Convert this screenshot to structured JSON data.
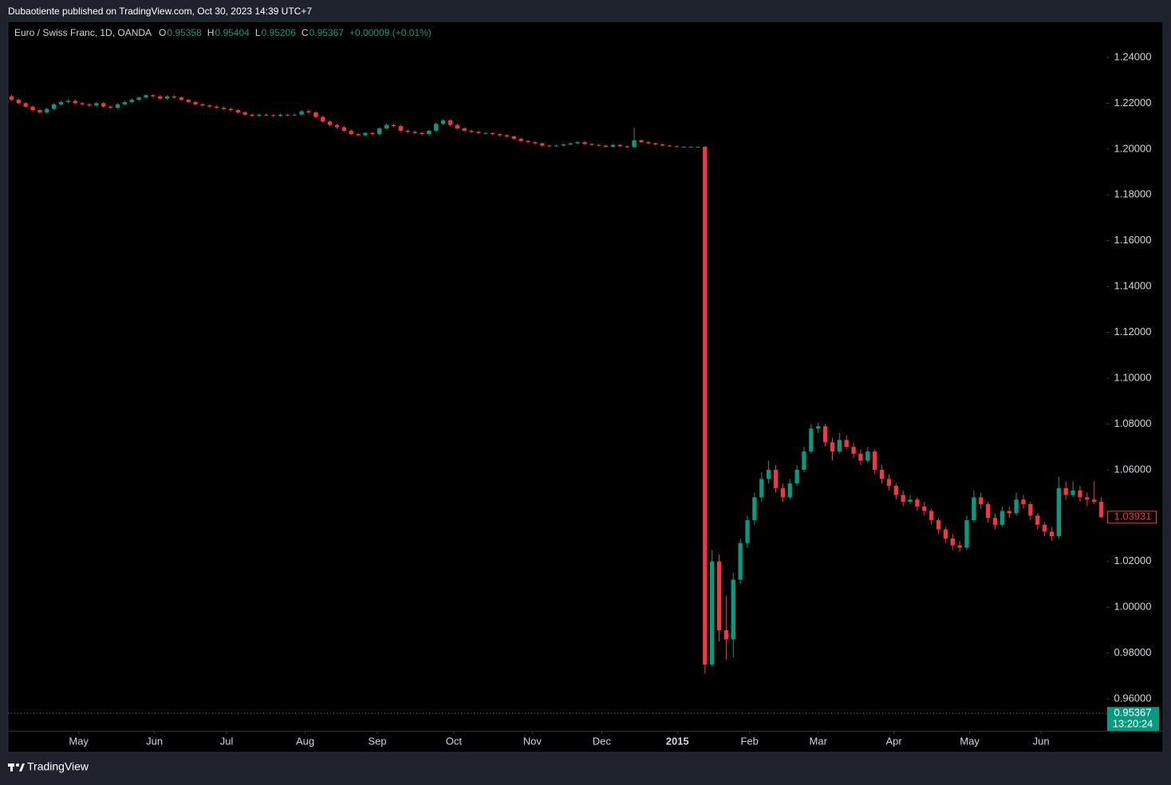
{
  "header": {
    "published": "Dubaotiente published on TradingView.com, Oct 30, 2023 14:39 UTC+7"
  },
  "footer": {
    "brand": "TradingView"
  },
  "chart_data": {
    "type": "candlestick",
    "title": "Euro / Swiss Franc, 1D, OANDA",
    "legend_values": [
      {
        "label": "O",
        "value": 0.95358
      },
      {
        "label": "H",
        "value": 0.95404
      },
      {
        "label": "L",
        "value": 0.95206
      },
      {
        "label": "C",
        "value": 0.95367
      }
    ],
    "change": "+0.00009 (+0.01%)",
    "up_color": "#089981",
    "down_color": "#f23645",
    "ylim": [
      0.9461,
      1.2553
    ],
    "yticks": [
      {
        "value": 0.96,
        "label": "0.96000"
      },
      {
        "value": 0.98,
        "label": "0.98000"
      },
      {
        "value": 1.0,
        "label": "1.00000"
      },
      {
        "value": 1.02,
        "label": "1.02000"
      },
      {
        "value": 1.04,
        "label": "1.04000"
      },
      {
        "value": 1.06,
        "label": "1.06000"
      },
      {
        "value": 1.08,
        "label": "1.08000"
      },
      {
        "value": 1.1,
        "label": "1.10000"
      },
      {
        "value": 1.12,
        "label": "1.12000"
      },
      {
        "value": 1.14,
        "label": "1.14000"
      },
      {
        "value": 1.16,
        "label": "1.16000"
      },
      {
        "value": 1.18,
        "label": "1.18000"
      },
      {
        "value": 1.2,
        "label": "1.20000"
      },
      {
        "value": 1.22,
        "label": "1.22000"
      },
      {
        "value": 1.24,
        "label": "1.24000"
      }
    ],
    "xlim": [
      -0.5,
      154.5
    ],
    "xticks": [
      {
        "value": 9.5,
        "label": "May"
      },
      {
        "value": 20.2,
        "label": "Jun"
      },
      {
        "value": 30.4,
        "label": "Jul"
      },
      {
        "value": 41.5,
        "label": "Aug"
      },
      {
        "value": 51.7,
        "label": "Sep"
      },
      {
        "value": 62.5,
        "label": "Oct"
      },
      {
        "value": 73.6,
        "label": "Nov"
      },
      {
        "value": 83.4,
        "label": "Dec"
      },
      {
        "value": 94.1,
        "label": "2015"
      },
      {
        "value": 104.3,
        "label": "Feb"
      },
      {
        "value": 114,
        "label": "Mar"
      },
      {
        "value": 124.7,
        "label": "Apr"
      },
      {
        "value": 135.4,
        "label": "May"
      },
      {
        "value": 145.5,
        "label": "Jun"
      }
    ],
    "price_lines": [
      {
        "value": 1.03931,
        "color": "#f23645"
      },
      {
        "value": 0.95367,
        "color": "#089981",
        "countdown": "13:20:24"
      }
    ],
    "ohlc": [
      [
        1.223,
        1.2238,
        1.221,
        1.2215
      ],
      [
        1.2215,
        1.222,
        1.2195,
        1.22
      ],
      [
        1.22,
        1.2205,
        1.218,
        1.2185
      ],
      [
        1.2185,
        1.219,
        1.2165,
        1.217
      ],
      [
        1.217,
        1.2175,
        1.2155,
        1.216
      ],
      [
        1.216,
        1.218,
        1.2155,
        1.2175
      ],
      [
        1.2175,
        1.22,
        1.217,
        1.2195
      ],
      [
        1.2195,
        1.221,
        1.219,
        1.2205
      ],
      [
        1.2205,
        1.2218,
        1.22,
        1.221
      ],
      [
        1.221,
        1.2215,
        1.2195,
        1.22
      ],
      [
        1.22,
        1.2205,
        1.219,
        1.2195
      ],
      [
        1.2195,
        1.22,
        1.2185,
        1.219
      ],
      [
        1.219,
        1.2205,
        1.2185,
        1.22
      ],
      [
        1.22,
        1.2205,
        1.218,
        1.2185
      ],
      [
        1.2185,
        1.219,
        1.2175,
        1.218
      ],
      [
        1.218,
        1.22,
        1.2175,
        1.2195
      ],
      [
        1.2195,
        1.221,
        1.219,
        1.2205
      ],
      [
        1.2205,
        1.222,
        1.22,
        1.2215
      ],
      [
        1.2215,
        1.223,
        1.221,
        1.2225
      ],
      [
        1.2225,
        1.224,
        1.222,
        1.2235
      ],
      [
        1.2235,
        1.224,
        1.2225,
        1.223
      ],
      [
        1.223,
        1.2235,
        1.2215,
        1.222
      ],
      [
        1.222,
        1.2235,
        1.2215,
        1.223
      ],
      [
        1.223,
        1.2235,
        1.222,
        1.2225
      ],
      [
        1.2225,
        1.223,
        1.221,
        1.2215
      ],
      [
        1.2215,
        1.222,
        1.22,
        1.2205
      ],
      [
        1.2205,
        1.221,
        1.219,
        1.2195
      ],
      [
        1.2195,
        1.22,
        1.2185,
        1.219
      ],
      [
        1.219,
        1.2195,
        1.218,
        1.2185
      ],
      [
        1.2185,
        1.219,
        1.2175,
        1.218
      ],
      [
        1.218,
        1.2185,
        1.217,
        1.2175
      ],
      [
        1.2175,
        1.218,
        1.2165,
        1.217
      ],
      [
        1.217,
        1.2175,
        1.2155,
        1.216
      ],
      [
        1.216,
        1.2165,
        1.2145,
        1.215
      ],
      [
        1.215,
        1.2155,
        1.214,
        1.2145
      ],
      [
        1.2145,
        1.2155,
        1.214,
        1.215
      ],
      [
        1.215,
        1.2155,
        1.2143,
        1.2148
      ],
      [
        1.2148,
        1.2152,
        1.214,
        1.2145
      ],
      [
        1.2145,
        1.2155,
        1.214,
        1.215
      ],
      [
        1.215,
        1.2154,
        1.2143,
        1.2148
      ],
      [
        1.2148,
        1.2155,
        1.2144,
        1.215
      ],
      [
        1.215,
        1.217,
        1.2146,
        1.2165
      ],
      [
        1.2165,
        1.2172,
        1.2155,
        1.216
      ],
      [
        1.216,
        1.2164,
        1.2135,
        1.214
      ],
      [
        1.214,
        1.2145,
        1.2115,
        1.212
      ],
      [
        1.212,
        1.2125,
        1.21,
        1.2105
      ],
      [
        1.2105,
        1.211,
        1.209,
        1.2095
      ],
      [
        1.2095,
        1.21,
        1.2075,
        1.208
      ],
      [
        1.208,
        1.2085,
        1.206,
        1.2065
      ],
      [
        1.2065,
        1.207,
        1.2055,
        1.206
      ],
      [
        1.206,
        1.2075,
        1.2055,
        1.207
      ],
      [
        1.207,
        1.2075,
        1.206,
        1.2065
      ],
      [
        1.2065,
        1.2095,
        1.206,
        1.209
      ],
      [
        1.209,
        1.2112,
        1.2085,
        1.2105
      ],
      [
        1.2105,
        1.211,
        1.2095,
        1.21
      ],
      [
        1.21,
        1.2105,
        1.2075,
        1.208
      ],
      [
        1.208,
        1.2085,
        1.207,
        1.2075
      ],
      [
        1.2075,
        1.208,
        1.2065,
        1.207
      ],
      [
        1.207,
        1.2075,
        1.206,
        1.2065
      ],
      [
        1.2065,
        1.2085,
        1.206,
        1.208
      ],
      [
        1.208,
        1.2115,
        1.2075,
        1.211
      ],
      [
        1.211,
        1.213,
        1.2105,
        1.2125
      ],
      [
        1.2125,
        1.213,
        1.21,
        1.2105
      ],
      [
        1.2105,
        1.211,
        1.2085,
        1.209
      ],
      [
        1.209,
        1.2095,
        1.2075,
        1.208
      ],
      [
        1.208,
        1.2085,
        1.207,
        1.2075
      ],
      [
        1.2075,
        1.208,
        1.2065,
        1.207
      ],
      [
        1.207,
        1.2075,
        1.2065,
        1.207
      ],
      [
        1.207,
        1.2073,
        1.206,
        1.2065
      ],
      [
        1.2065,
        1.2068,
        1.2055,
        1.206
      ],
      [
        1.206,
        1.2064,
        1.205,
        1.2055
      ],
      [
        1.2055,
        1.2058,
        1.204,
        1.2045
      ],
      [
        1.2045,
        1.205,
        1.203,
        1.2035
      ],
      [
        1.2035,
        1.204,
        1.2025,
        1.203
      ],
      [
        1.203,
        1.2034,
        1.202,
        1.2025
      ],
      [
        1.2025,
        1.2028,
        1.201,
        1.2015
      ],
      [
        1.2015,
        1.2018,
        1.2008,
        1.2012
      ],
      [
        1.2012,
        1.202,
        1.2009,
        1.2015
      ],
      [
        1.2015,
        1.2024,
        1.2012,
        1.202
      ],
      [
        1.202,
        1.2028,
        1.2016,
        1.2025
      ],
      [
        1.2025,
        1.2034,
        1.202,
        1.203
      ],
      [
        1.203,
        1.2034,
        1.2018,
        1.2022
      ],
      [
        1.2022,
        1.2026,
        1.2014,
        1.2018
      ],
      [
        1.2018,
        1.2022,
        1.2011,
        1.2015
      ],
      [
        1.2015,
        1.2018,
        1.2006,
        1.201
      ],
      [
        1.201,
        1.2022,
        1.2007,
        1.2018
      ],
      [
        1.2018,
        1.2021,
        1.2009,
        1.2012
      ],
      [
        1.2012,
        1.2015,
        1.2004,
        1.2008
      ],
      [
        1.2008,
        1.2094,
        1.2006,
        1.2038
      ],
      [
        1.2038,
        1.2042,
        1.2026,
        1.203
      ],
      [
        1.203,
        1.2034,
        1.2021,
        1.2025
      ],
      [
        1.2025,
        1.2028,
        1.2016,
        1.202
      ],
      [
        1.202,
        1.2024,
        1.2012,
        1.2015
      ],
      [
        1.2015,
        1.2018,
        1.2009,
        1.2012
      ],
      [
        1.2012,
        1.2015,
        1.2008,
        1.201
      ],
      [
        1.201,
        1.2012,
        1.2008,
        1.201
      ],
      [
        1.201,
        1.2012,
        1.2008,
        1.201
      ],
      [
        1.201,
        1.2012,
        1.2008,
        1.201
      ],
      [
        1.201,
        1.2012,
        0.971,
        0.975
      ],
      [
        0.975,
        1.025,
        0.974,
        1.02
      ],
      [
        1.02,
        1.023,
        0.985,
        0.99
      ],
      [
        0.99,
        1.005,
        0.977,
        0.986
      ],
      [
        0.986,
        1.015,
        0.978,
        1.012
      ],
      [
        1.012,
        1.03,
        1.01,
        1.028
      ],
      [
        1.028,
        1.04,
        1.026,
        1.038
      ],
      [
        1.038,
        1.05,
        1.036,
        1.048
      ],
      [
        1.048,
        1.059,
        1.046,
        1.056
      ],
      [
        1.056,
        1.064,
        1.054,
        1.06
      ],
      [
        1.06,
        1.062,
        1.05,
        1.052
      ],
      [
        1.052,
        1.054,
        1.046,
        1.048
      ],
      [
        1.048,
        1.056,
        1.047,
        1.054
      ],
      [
        1.054,
        1.062,
        1.053,
        1.06
      ],
      [
        1.06,
        1.07,
        1.059,
        1.068
      ],
      [
        1.068,
        1.08,
        1.067,
        1.078
      ],
      [
        1.078,
        1.0805,
        1.076,
        1.079
      ],
      [
        1.079,
        1.08,
        1.07,
        1.072
      ],
      [
        1.072,
        1.074,
        1.064,
        1.068
      ],
      [
        1.068,
        1.076,
        1.067,
        1.073
      ],
      [
        1.073,
        1.075,
        1.069,
        1.07
      ],
      [
        1.07,
        1.072,
        1.065,
        1.067
      ],
      [
        1.067,
        1.069,
        1.062,
        1.064
      ],
      [
        1.064,
        1.07,
        1.063,
        1.068
      ],
      [
        1.068,
        1.069,
        1.058,
        1.06
      ],
      [
        1.06,
        1.062,
        1.054,
        1.056
      ],
      [
        1.056,
        1.058,
        1.051,
        1.053
      ],
      [
        1.053,
        1.054,
        1.047,
        1.049
      ],
      [
        1.049,
        1.051,
        1.044,
        1.046
      ],
      [
        1.046,
        1.049,
        1.045,
        1.047
      ],
      [
        1.047,
        1.048,
        1.042,
        1.044
      ],
      [
        1.044,
        1.046,
        1.04,
        1.042
      ],
      [
        1.042,
        1.043,
        1.036,
        1.038
      ],
      [
        1.038,
        1.039,
        1.032,
        1.034
      ],
      [
        1.034,
        1.035,
        1.028,
        1.03
      ],
      [
        1.03,
        1.032,
        1.025,
        1.027
      ],
      [
        1.027,
        1.029,
        1.024,
        1.026
      ],
      [
        1.026,
        1.04,
        1.025,
        1.038
      ],
      [
        1.038,
        1.051,
        1.037,
        1.048
      ],
      [
        1.048,
        1.05,
        1.043,
        1.045
      ],
      [
        1.045,
        1.046,
        1.037,
        1.039
      ],
      [
        1.039,
        1.041,
        1.034,
        1.036
      ],
      [
        1.036,
        1.044,
        1.035,
        1.042
      ],
      [
        1.042,
        1.044,
        1.039,
        1.041
      ],
      [
        1.041,
        1.05,
        1.04,
        1.047
      ],
      [
        1.047,
        1.049,
        1.043,
        1.045
      ],
      [
        1.045,
        1.046,
        1.038,
        1.04
      ],
      [
        1.04,
        1.041,
        1.034,
        1.036
      ],
      [
        1.036,
        1.037,
        1.031,
        1.033
      ],
      [
        1.033,
        1.035,
        1.029,
        1.031
      ],
      [
        1.031,
        1.057,
        1.03,
        1.052
      ],
      [
        1.052,
        1.055,
        1.047,
        1.049
      ],
      [
        1.049,
        1.055,
        1.048,
        1.051
      ],
      [
        1.051,
        1.053,
        1.046,
        1.048
      ],
      [
        1.048,
        1.05,
        1.044,
        1.047
      ],
      [
        1.047,
        1.055,
        1.045,
        1.046
      ],
      [
        1.046,
        1.048,
        1.039,
        1.03931
      ]
    ]
  }
}
